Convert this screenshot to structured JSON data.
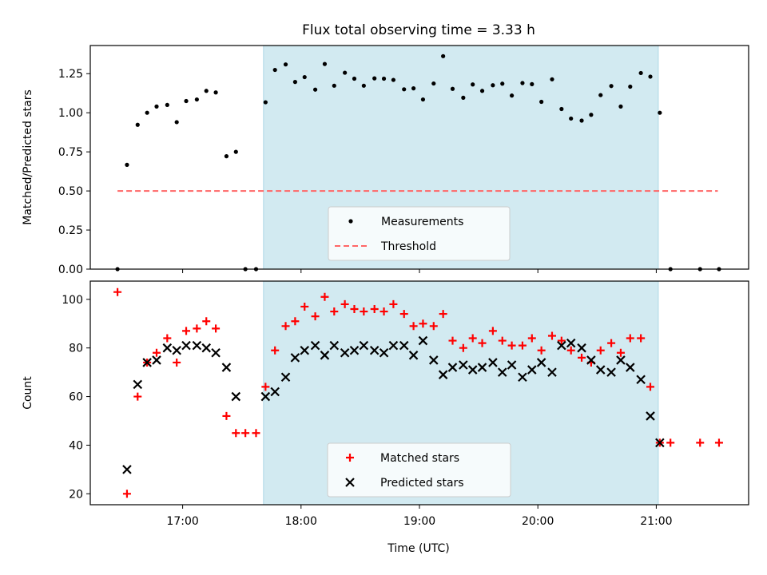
{
  "chart_data": {
    "title": "Flux total observing time = 3.33 h",
    "shaded_span_hours": [
      17.683,
      21.017
    ],
    "shade_color": "#add8e6",
    "xlabel": "Time (UTC)",
    "xticks": [
      {
        "value": 17,
        "label": "17:00"
      },
      {
        "value": 18,
        "label": "18:00"
      },
      {
        "value": 19,
        "label": "19:00"
      },
      {
        "value": 20,
        "label": "20:00"
      },
      {
        "value": 21,
        "label": "21:00"
      }
    ],
    "xlim": [
      16.22,
      21.78
    ],
    "panels": [
      {
        "type": "scatter",
        "ylabel": "Matched/Predicted stars",
        "ylim": [
          0,
          1.43
        ],
        "yticks": [
          {
            "value": 0,
            "label": "0.00"
          },
          {
            "value": 0.25,
            "label": "0.25"
          },
          {
            "value": 0.5,
            "label": "0.50"
          },
          {
            "value": 0.75,
            "label": "0.75"
          },
          {
            "value": 1.0,
            "label": "1.00"
          },
          {
            "value": 1.25,
            "label": "1.25"
          }
        ],
        "threshold": {
          "name": "Threshold",
          "value": 0.5,
          "x_range": [
            16.45,
            21.52
          ],
          "color": "#ff6666"
        },
        "series": [
          {
            "name": "Measurements",
            "color": "#000000",
            "points": [
              [
                16.45,
                0.0
              ],
              [
                16.53,
                0.667
              ],
              [
                16.62,
                0.923
              ],
              [
                16.7,
                1.0
              ],
              [
                16.78,
                1.04
              ],
              [
                16.87,
                1.05
              ],
              [
                16.95,
                0.94
              ],
              [
                17.03,
                1.075
              ],
              [
                17.12,
                1.085
              ],
              [
                17.2,
                1.14
              ],
              [
                17.28,
                1.13
              ],
              [
                17.37,
                0.722
              ],
              [
                17.45,
                0.75
              ],
              [
                17.53,
                0.0
              ],
              [
                17.62,
                0.0
              ],
              [
                17.7,
                1.067
              ],
              [
                17.78,
                1.274
              ],
              [
                17.87,
                1.309
              ],
              [
                17.95,
                1.197
              ],
              [
                18.03,
                1.228
              ],
              [
                18.12,
                1.148
              ],
              [
                18.2,
                1.312
              ],
              [
                18.28,
                1.173
              ],
              [
                18.37,
                1.256
              ],
              [
                18.45,
                1.218
              ],
              [
                18.53,
                1.173
              ],
              [
                18.62,
                1.22
              ],
              [
                18.7,
                1.218
              ],
              [
                18.78,
                1.21
              ],
              [
                18.87,
                1.15
              ],
              [
                18.95,
                1.156
              ],
              [
                19.03,
                1.085
              ],
              [
                19.12,
                1.187
              ],
              [
                19.2,
                1.362
              ],
              [
                19.28,
                1.153
              ],
              [
                19.37,
                1.096
              ],
              [
                19.45,
                1.181
              ],
              [
                19.53,
                1.14
              ],
              [
                19.62,
                1.176
              ],
              [
                19.7,
                1.186
              ],
              [
                19.78,
                1.11
              ],
              [
                19.87,
                1.19
              ],
              [
                19.95,
                1.183
              ],
              [
                20.03,
                1.07
              ],
              [
                20.12,
                1.214
              ],
              [
                20.2,
                1.024
              ],
              [
                20.28,
                0.963
              ],
              [
                20.37,
                0.95
              ],
              [
                20.45,
                0.987
              ],
              [
                20.53,
                1.113
              ],
              [
                20.62,
                1.171
              ],
              [
                20.7,
                1.04
              ],
              [
                20.78,
                1.167
              ],
              [
                20.87,
                1.254
              ],
              [
                20.95,
                1.231
              ],
              [
                21.03,
                1.0
              ],
              [
                21.12,
                0.0
              ],
              [
                21.37,
                0.0
              ],
              [
                21.53,
                0.0
              ]
            ]
          }
        ],
        "legend": {
          "position": "lower-center",
          "entries": [
            "Measurements",
            "Threshold"
          ]
        }
      },
      {
        "type": "scatter",
        "ylabel": "Count",
        "ylim": [
          15.5,
          107.5
        ],
        "yticks": [
          {
            "value": 20,
            "label": "20"
          },
          {
            "value": 40,
            "label": "40"
          },
          {
            "value": 60,
            "label": "60"
          },
          {
            "value": 80,
            "label": "80"
          },
          {
            "value": 100,
            "label": "100"
          }
        ],
        "series": [
          {
            "name": "Matched stars",
            "marker": "+",
            "color": "#ff0000",
            "points": [
              [
                16.45,
                103
              ],
              [
                16.53,
                20
              ],
              [
                16.62,
                60
              ],
              [
                16.7,
                74
              ],
              [
                16.78,
                78
              ],
              [
                16.87,
                84
              ],
              [
                16.95,
                74
              ],
              [
                17.03,
                87
              ],
              [
                17.12,
                88
              ],
              [
                17.2,
                91
              ],
              [
                17.28,
                88
              ],
              [
                17.37,
                52
              ],
              [
                17.45,
                45
              ],
              [
                17.53,
                45
              ],
              [
                17.62,
                45
              ],
              [
                17.7,
                64
              ],
              [
                17.78,
                79
              ],
              [
                17.87,
                89
              ],
              [
                17.95,
                91
              ],
              [
                18.03,
                97
              ],
              [
                18.12,
                93
              ],
              [
                18.2,
                101
              ],
              [
                18.28,
                95
              ],
              [
                18.37,
                98
              ],
              [
                18.45,
                96
              ],
              [
                18.53,
                95
              ],
              [
                18.62,
                96
              ],
              [
                18.7,
                95
              ],
              [
                18.78,
                98
              ],
              [
                18.87,
                94
              ],
              [
                18.95,
                89
              ],
              [
                19.03,
                90
              ],
              [
                19.12,
                89
              ],
              [
                19.2,
                94
              ],
              [
                19.28,
                83
              ],
              [
                19.37,
                80
              ],
              [
                19.45,
                84
              ],
              [
                19.53,
                82
              ],
              [
                19.62,
                87
              ],
              [
                19.7,
                83
              ],
              [
                19.78,
                81
              ],
              [
                19.87,
                81
              ],
              [
                19.95,
                84
              ],
              [
                20.03,
                79
              ],
              [
                20.12,
                85
              ],
              [
                20.2,
                83
              ],
              [
                20.28,
                79
              ],
              [
                20.37,
                76
              ],
              [
                20.45,
                74
              ],
              [
                20.53,
                79
              ],
              [
                20.62,
                82
              ],
              [
                20.7,
                78
              ],
              [
                20.78,
                84
              ],
              [
                20.87,
                84
              ],
              [
                20.95,
                64
              ],
              [
                21.03,
                41
              ],
              [
                21.12,
                41
              ],
              [
                21.37,
                41
              ],
              [
                21.53,
                41
              ]
            ]
          },
          {
            "name": "Predicted stars",
            "marker": "x",
            "color": "#000000",
            "points": [
              [
                16.53,
                30
              ],
              [
                16.62,
                65
              ],
              [
                16.7,
                74
              ],
              [
                16.78,
                75
              ],
              [
                16.87,
                80
              ],
              [
                16.95,
                79
              ],
              [
                17.03,
                81
              ],
              [
                17.12,
                81
              ],
              [
                17.2,
                80
              ],
              [
                17.28,
                78
              ],
              [
                17.37,
                72
              ],
              [
                17.45,
                60
              ],
              [
                17.7,
                60
              ],
              [
                17.78,
                62
              ],
              [
                17.87,
                68
              ],
              [
                17.95,
                76
              ],
              [
                18.03,
                79
              ],
              [
                18.12,
                81
              ],
              [
                18.2,
                77
              ],
              [
                18.28,
                81
              ],
              [
                18.37,
                78
              ],
              [
                18.45,
                79
              ],
              [
                18.53,
                81
              ],
              [
                18.62,
                79
              ],
              [
                18.7,
                78
              ],
              [
                18.78,
                81
              ],
              [
                18.87,
                81
              ],
              [
                18.95,
                77
              ],
              [
                19.03,
                83
              ],
              [
                19.12,
                75
              ],
              [
                19.2,
                69
              ],
              [
                19.28,
                72
              ],
              [
                19.37,
                73
              ],
              [
                19.45,
                71
              ],
              [
                19.53,
                72
              ],
              [
                19.62,
                74
              ],
              [
                19.7,
                70
              ],
              [
                19.78,
                73
              ],
              [
                19.87,
                68
              ],
              [
                19.95,
                71
              ],
              [
                20.03,
                74
              ],
              [
                20.12,
                70
              ],
              [
                20.2,
                81
              ],
              [
                20.28,
                82
              ],
              [
                20.37,
                80
              ],
              [
                20.45,
                75
              ],
              [
                20.53,
                71
              ],
              [
                20.62,
                70
              ],
              [
                20.7,
                75
              ],
              [
                20.78,
                72
              ],
              [
                20.87,
                67
              ],
              [
                20.95,
                52
              ],
              [
                21.03,
                41
              ]
            ]
          }
        ],
        "legend": {
          "position": "lower-center",
          "entries": [
            "Matched stars",
            "Predicted stars"
          ]
        }
      }
    ]
  }
}
